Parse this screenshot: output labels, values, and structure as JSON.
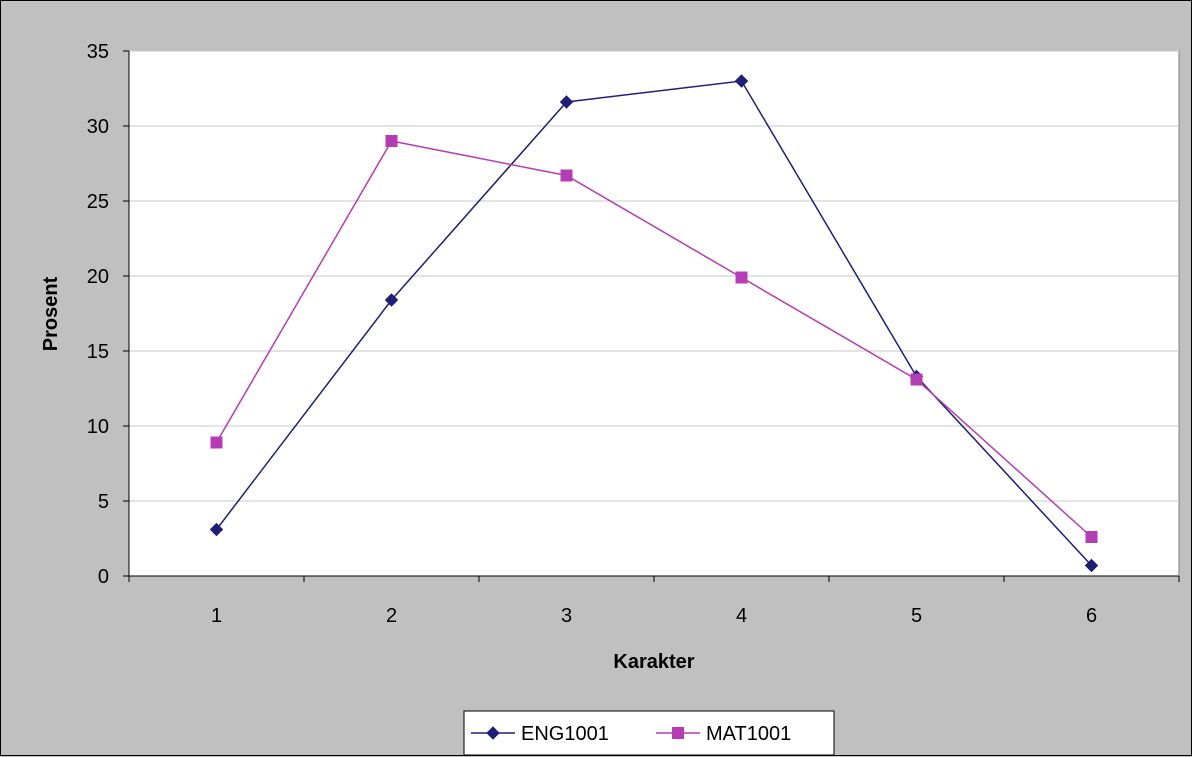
{
  "chart_data": {
    "type": "line",
    "xlabel": "Karakter",
    "ylabel": "Prosent",
    "categories": [
      "1",
      "2",
      "3",
      "4",
      "5",
      "6"
    ],
    "ylim": [
      0,
      35
    ],
    "yticks": [
      "0",
      "5",
      "10",
      "15",
      "20",
      "25",
      "30",
      "35"
    ],
    "grid": true,
    "legend_position": "bottom",
    "series": [
      {
        "name": "ENG1001",
        "marker": "diamond",
        "color": "#1f1f78",
        "values": [
          3.1,
          18.4,
          31.6,
          33.0,
          13.3,
          0.7
        ]
      },
      {
        "name": "MAT1001",
        "marker": "square",
        "color": "#b43cb4",
        "values": [
          8.9,
          29.0,
          26.7,
          19.9,
          13.1,
          2.6
        ]
      }
    ]
  }
}
